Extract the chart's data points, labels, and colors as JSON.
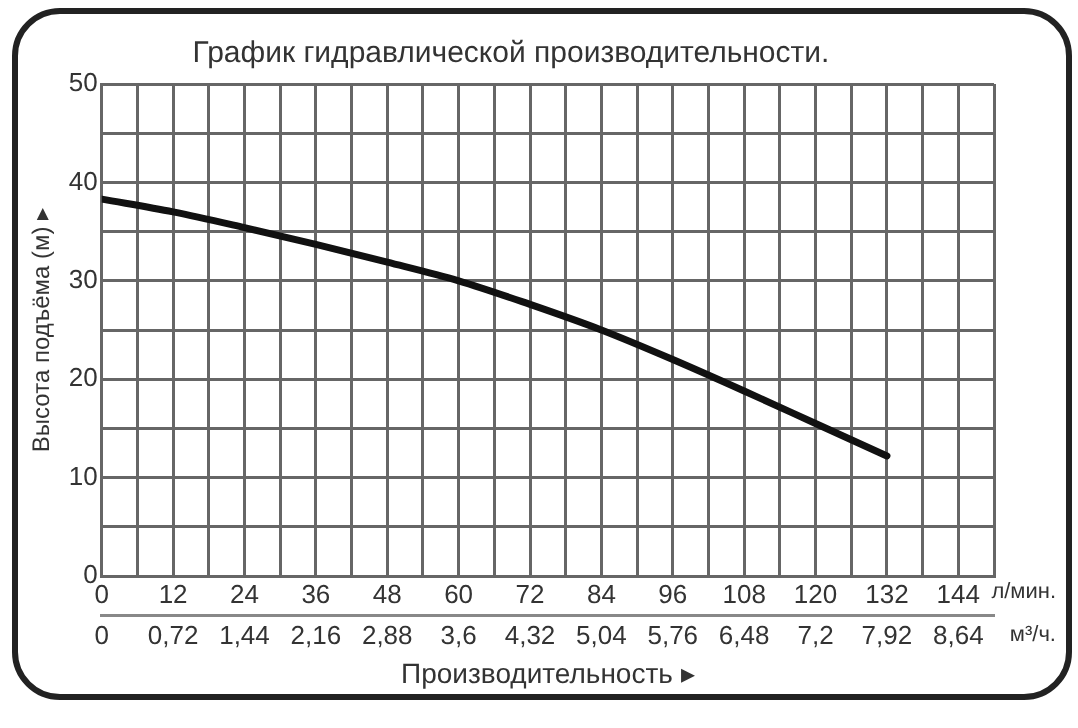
{
  "chart_data": {
    "type": "line",
    "title": "График гидравлической производительности.",
    "xlabel": "Производительность ▸",
    "ylabel": "Высота подъёма (м) ▸",
    "x": [
      0,
      12,
      24,
      36,
      48,
      60,
      72,
      84,
      96,
      108,
      120,
      132
    ],
    "series": [
      {
        "color": "#111111",
        "values": [
          38.3,
          37,
          35.4,
          33.7,
          31.9,
          30,
          27.6,
          25,
          22,
          18.8,
          15.5,
          12.2
        ]
      }
    ],
    "xlim": [
      0,
      150
    ],
    "xticks": [
      0,
      {
        "value": 6,
        "label": null
      },
      12,
      {
        "value": 18,
        "label": null
      },
      24,
      {
        "value": 30,
        "label": null
      },
      36,
      {
        "value": 42,
        "label": null
      },
      48,
      {
        "value": 54,
        "label": null
      },
      60,
      {
        "value": 66,
        "label": null
      },
      72,
      {
        "value": 78,
        "label": null
      },
      84,
      {
        "value": 90,
        "label": null
      },
      96,
      {
        "value": 102,
        "label": null
      },
      108,
      {
        "value": 114,
        "label": null
      },
      120,
      {
        "value": 126,
        "label": null
      },
      132,
      {
        "value": 138,
        "label": null
      },
      144,
      {
        "value": 150,
        "label": null
      }
    ],
    "x2lim": [
      0,
      9
    ],
    "x2ticks": [
      0,
      {
        "value": 0.72,
        "label": "0,72"
      },
      {
        "value": 1.44,
        "label": "1,44"
      },
      {
        "value": 2.16,
        "label": "2,16"
      },
      {
        "value": 2.88,
        "label": "2,88"
      },
      {
        "value": 3.6,
        "label": "3,6"
      },
      {
        "value": 4.32,
        "label": "4,32"
      },
      {
        "value": 5.04,
        "label": "5,04"
      },
      {
        "value": 5.76,
        "label": "5,76"
      },
      {
        "value": 6.48,
        "label": "6,48"
      },
      {
        "value": 7.2,
        "label": "7,2"
      },
      {
        "value": 7.92,
        "label": "7,92"
      },
      {
        "value": 8.64,
        "label": "8,64"
      }
    ],
    "ylim": [
      0,
      50
    ],
    "yticks": [
      0,
      {
        "value": 5,
        "label": null
      },
      10,
      {
        "value": 15,
        "label": null
      },
      20,
      {
        "value": 25,
        "label": null
      },
      30,
      {
        "value": 35,
        "label": null
      },
      40,
      {
        "value": 45,
        "label": null
      },
      50
    ],
    "annotations": [
      "л/мин.",
      "м³/ч."
    ],
    "grid": true,
    "legend": false,
    "marker": "none",
    "line_style": "solid"
  }
}
